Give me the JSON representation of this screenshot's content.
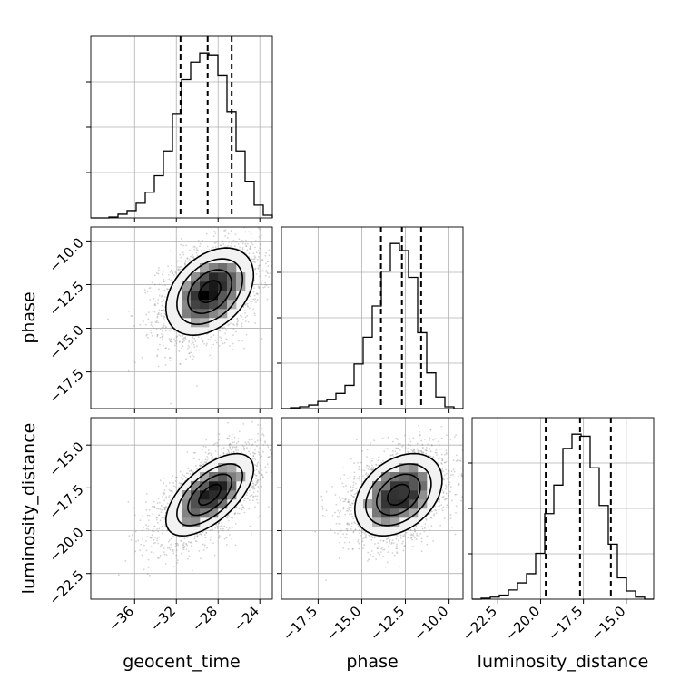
{
  "chart_data": {
    "type": "corner",
    "parameters": [
      "geocent_time",
      "phase",
      "luminosity_distance"
    ],
    "ranges": {
      "geocent_time": [
        -40.2,
        -22.8
      ],
      "phase": [
        -19.6,
        -9.2
      ],
      "luminosity_distance": [
        -24.0,
        -13.4
      ]
    },
    "ticks": {
      "geocent_time": [
        -36,
        -32,
        -28,
        -24
      ],
      "phase": [
        -17.5,
        -15.0,
        -12.5,
        -10.0
      ],
      "luminosity_distance": [
        -22.5,
        -20.0,
        -17.5,
        -15.0
      ]
    },
    "tick_labels": {
      "geocent_time": [
        "−36",
        "−32",
        "−28",
        "−24"
      ],
      "phase": [
        "−17.5",
        "−15.0",
        "−12.5",
        "−10.0"
      ],
      "luminosity_distance": [
        "−22.5",
        "−20.0",
        "−17.5",
        "−15.0"
      ]
    },
    "histograms": {
      "geocent_time": {
        "edges": [
          -40.2,
          -39.33,
          -38.46,
          -37.59,
          -36.72,
          -35.85,
          -34.98,
          -34.11,
          -33.24,
          -32.37,
          -31.5,
          -30.63,
          -29.76,
          -28.89,
          -28.02,
          -27.15,
          -26.28,
          -25.41,
          -24.54,
          -23.67,
          -22.8
        ],
        "counts": [
          0,
          0,
          1,
          4,
          8,
          16,
          28,
          46,
          73,
          113,
          151,
          170,
          180,
          177,
          155,
          116,
          73,
          40,
          14,
          3
        ]
      },
      "phase": {
        "edges": [
          -19.6,
          -19.08,
          -18.56,
          -18.04,
          -17.52,
          -17.0,
          -16.48,
          -15.96,
          -15.44,
          -14.92,
          -14.4,
          -13.88,
          -13.36,
          -12.84,
          -12.32,
          -11.8,
          -11.28,
          -10.76,
          -10.24,
          -9.72,
          -9.2
        ],
        "counts": [
          0,
          1,
          2,
          4,
          8,
          10,
          17,
          26,
          50,
          80,
          115,
          154,
          185,
          177,
          147,
          85,
          40,
          13,
          2,
          0
        ]
      },
      "luminosity_distance": {
        "edges": [
          -24.0,
          -23.47,
          -22.94,
          -22.41,
          -21.88,
          -21.35,
          -20.82,
          -20.29,
          -19.76,
          -19.23,
          -18.7,
          -18.17,
          -17.64,
          -17.11,
          -16.58,
          -16.05,
          -15.52,
          -14.99,
          -14.46,
          -13.93,
          -13.4
        ],
        "counts": [
          0,
          1,
          2,
          4,
          9,
          16,
          25,
          45,
          84,
          112,
          148,
          162,
          160,
          129,
          92,
          54,
          21,
          8,
          2,
          0
        ]
      }
    },
    "quantiles": {
      "geocent_time": [
        -31.6,
        -29.0,
        -26.7
      ],
      "phase": [
        -13.9,
        -12.7,
        -11.6
      ],
      "luminosity_distance": [
        -19.7,
        -17.7,
        -15.9
      ]
    },
    "pairs": [
      {
        "x": "geocent_time",
        "y": "phase",
        "mean": [
          -28.8,
          -12.9
        ],
        "std": [
          2.1,
          1.25
        ],
        "rho": 0.38
      },
      {
        "x": "geocent_time",
        "y": "luminosity_distance",
        "mean": [
          -28.8,
          -17.9
        ],
        "std": [
          2.1,
          1.2
        ],
        "rho": 0.62
      },
      {
        "x": "phase",
        "y": "luminosity_distance",
        "mean": [
          -12.9,
          -17.9
        ],
        "std": [
          1.25,
          1.2
        ],
        "rho": 0.35
      }
    ],
    "contour_levels_sigma": [
      0.5,
      1.0,
      1.5,
      2.0
    ],
    "grid": true,
    "colors": {
      "ink": "#000000",
      "grid": "#b0b0b0",
      "scatter": "#808080",
      "fill_light": "#f2f2f2"
    }
  }
}
